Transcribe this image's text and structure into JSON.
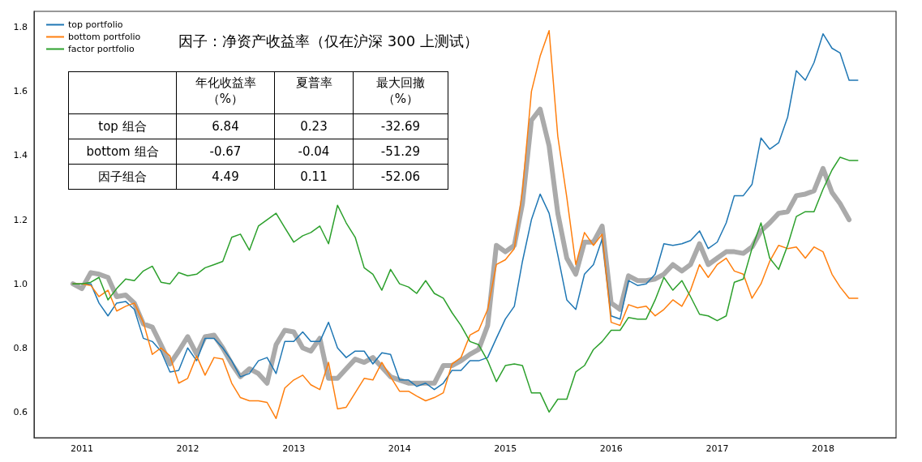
{
  "chart_data": {
    "type": "line",
    "title": "因子：净资产收益率（仅在沪深 300 上测试）",
    "x": [
      "2010-12",
      "2011-01",
      "2011-02",
      "2011-03",
      "2011-04",
      "2011-05",
      "2011-06",
      "2011-07",
      "2011-08",
      "2011-09",
      "2011-10",
      "2011-11",
      "2011-12",
      "2012-01",
      "2012-02",
      "2012-03",
      "2012-04",
      "2012-05",
      "2012-06",
      "2012-07",
      "2012-08",
      "2012-09",
      "2012-10",
      "2012-11",
      "2012-12",
      "2013-01",
      "2013-02",
      "2013-03",
      "2013-04",
      "2013-05",
      "2013-06",
      "2013-07",
      "2013-08",
      "2013-09",
      "2013-10",
      "2013-11",
      "2013-12",
      "2014-01",
      "2014-02",
      "2014-03",
      "2014-04",
      "2014-05",
      "2014-06",
      "2014-07",
      "2014-08",
      "2014-09",
      "2014-10",
      "2014-11",
      "2014-12",
      "2015-01",
      "2015-02",
      "2015-03",
      "2015-04",
      "2015-05",
      "2015-06",
      "2015-07",
      "2015-08",
      "2015-09",
      "2015-10",
      "2015-11",
      "2015-12",
      "2016-01",
      "2016-02",
      "2016-03",
      "2016-04",
      "2016-05",
      "2016-06",
      "2016-07",
      "2016-08",
      "2016-09",
      "2016-10",
      "2016-11",
      "2016-12",
      "2017-01",
      "2017-02",
      "2017-03",
      "2017-04",
      "2017-05",
      "2017-06",
      "2017-07",
      "2017-08",
      "2017-09",
      "2017-10",
      "2017-11",
      "2017-12",
      "2018-01",
      "2018-02",
      "2018-03",
      "2018-04",
      "2018-05"
    ],
    "series": [
      {
        "name": "top portfolio",
        "color": "#1f77b4",
        "values": [
          1.0,
          1.0,
          1.0,
          0.94,
          0.9,
          0.94,
          0.945,
          0.92,
          0.83,
          0.82,
          0.79,
          0.725,
          0.73,
          0.8,
          0.76,
          0.83,
          0.83,
          0.8,
          0.76,
          0.71,
          0.72,
          0.76,
          0.77,
          0.72,
          0.82,
          0.82,
          0.85,
          0.82,
          0.82,
          0.88,
          0.8,
          0.77,
          0.79,
          0.79,
          0.75,
          0.785,
          0.78,
          0.7,
          0.7,
          0.68,
          0.69,
          0.67,
          0.69,
          0.73,
          0.73,
          0.76,
          0.76,
          0.77,
          0.83,
          0.89,
          0.93,
          1.07,
          1.2,
          1.28,
          1.22,
          1.09,
          0.95,
          0.92,
          1.03,
          1.06,
          1.14,
          0.9,
          0.89,
          1.01,
          0.995,
          1.0,
          1.03,
          1.125,
          1.12,
          1.125,
          1.135,
          1.165,
          1.11,
          1.13,
          1.19,
          1.275,
          1.275,
          1.31,
          1.455,
          1.42,
          1.44,
          1.52,
          1.665,
          1.635,
          1.69,
          1.78,
          1.735,
          1.72,
          1.635,
          1.635
        ]
      },
      {
        "name": "bottom portfolio",
        "color": "#ff7f0e",
        "values": [
          1.0,
          1.0,
          0.995,
          0.96,
          0.98,
          0.915,
          0.93,
          0.94,
          0.88,
          0.78,
          0.8,
          0.775,
          0.69,
          0.705,
          0.775,
          0.715,
          0.77,
          0.765,
          0.69,
          0.645,
          0.635,
          0.635,
          0.63,
          0.58,
          0.675,
          0.7,
          0.715,
          0.685,
          0.67,
          0.755,
          0.61,
          0.615,
          0.66,
          0.705,
          0.7,
          0.755,
          0.71,
          0.665,
          0.665,
          0.65,
          0.635,
          0.645,
          0.66,
          0.75,
          0.77,
          0.84,
          0.855,
          0.92,
          1.06,
          1.075,
          1.11,
          1.29,
          1.6,
          1.71,
          1.79,
          1.46,
          1.27,
          1.06,
          1.16,
          1.12,
          1.155,
          0.88,
          0.87,
          0.935,
          0.925,
          0.93,
          0.9,
          0.92,
          0.95,
          0.93,
          0.98,
          1.06,
          1.02,
          1.06,
          1.08,
          1.04,
          1.03,
          0.955,
          1.0,
          1.07,
          1.12,
          1.11,
          1.115,
          1.08,
          1.115,
          1.1,
          1.03,
          0.99,
          0.955,
          0.955
        ]
      },
      {
        "name": "factor portfolio",
        "color": "#2ca02c",
        "values": [
          1.0,
          1.0,
          1.005,
          1.02,
          0.95,
          0.985,
          1.015,
          1.01,
          1.04,
          1.055,
          1.005,
          1.0,
          1.035,
          1.025,
          1.03,
          1.05,
          1.06,
          1.07,
          1.145,
          1.155,
          1.105,
          1.18,
          1.2,
          1.22,
          1.175,
          1.13,
          1.15,
          1.16,
          1.18,
          1.125,
          1.245,
          1.19,
          1.145,
          1.05,
          1.03,
          0.98,
          1.045,
          1.0,
          0.99,
          0.97,
          1.01,
          0.97,
          0.955,
          0.91,
          0.87,
          0.82,
          0.81,
          0.76,
          0.695,
          0.745,
          0.75,
          0.745,
          0.66,
          0.66,
          0.6,
          0.64,
          0.64,
          0.725,
          0.745,
          0.795,
          0.82,
          0.855,
          0.855,
          0.895,
          0.89,
          0.89,
          0.95,
          1.02,
          0.98,
          1.01,
          0.96,
          0.905,
          0.9,
          0.885,
          0.9,
          1.005,
          1.015,
          1.11,
          1.19,
          1.08,
          1.045,
          1.12,
          1.21,
          1.225,
          1.225,
          1.295,
          1.355,
          1.395,
          1.385,
          1.385
        ]
      },
      {
        "color": "#aaaaaa",
        "values": [
          1.0,
          0.985,
          1.035,
          1.03,
          1.02,
          0.96,
          0.965,
          0.94,
          0.875,
          0.865,
          0.81,
          0.75,
          0.79,
          0.835,
          0.78,
          0.835,
          0.84,
          0.8,
          0.75,
          0.71,
          0.735,
          0.72,
          0.69,
          0.81,
          0.855,
          0.85,
          0.8,
          0.79,
          0.83,
          0.705,
          0.705,
          0.735,
          0.765,
          0.755,
          0.77,
          0.74,
          0.71,
          0.7,
          0.69,
          0.69,
          0.69,
          0.69,
          0.745,
          0.745,
          0.76,
          0.78,
          0.795,
          0.87,
          1.12,
          1.1,
          1.12,
          1.25,
          1.51,
          1.545,
          1.43,
          1.22,
          1.08,
          1.03,
          1.13,
          1.13,
          1.18,
          0.94,
          0.92,
          1.025,
          1.01,
          1.01,
          1.015,
          1.03,
          1.06,
          1.04,
          1.06,
          1.125,
          1.06,
          1.08,
          1.1,
          1.1,
          1.095,
          1.115,
          1.165,
          1.19,
          1.22,
          1.225,
          1.275,
          1.28,
          1.29,
          1.36,
          1.285,
          1.25,
          1.2,
          null
        ]
      }
    ],
    "xlim": [
      "2010-07-20",
      "2018-09-10"
    ],
    "xticks": [
      "2011",
      "2012",
      "2013",
      "2014",
      "2015",
      "2016",
      "2017",
      "2018"
    ],
    "ylim": [
      0.52,
      1.85
    ],
    "yticks": [
      0.6,
      0.8,
      {
        "value": 1,
        "label": "1.0"
      },
      1.2,
      1.4,
      1.6,
      1.8
    ],
    "grid": false,
    "legend": "top left",
    "annotations": [
      "年化收益率（%）",
      "夏普率",
      "最大回撤（%）",
      "top 组合",
      "6.84",
      "0.23",
      "-32.69",
      "bottom 组合",
      "-0.67",
      "-0.04",
      "-51.29",
      "因子组合",
      "4.49",
      "0.11",
      "-52.06"
    ]
  }
}
